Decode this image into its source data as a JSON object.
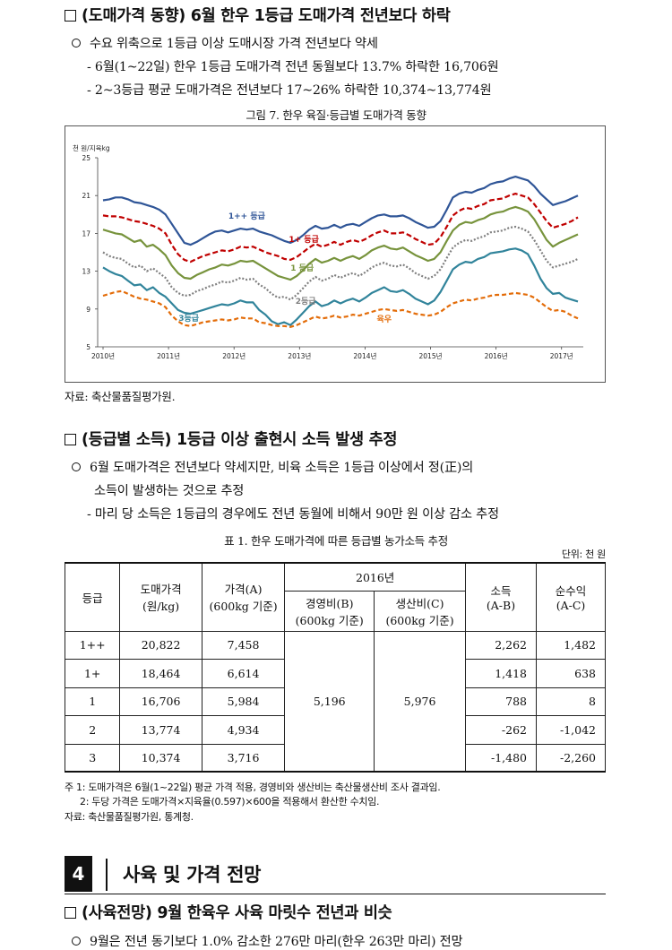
{
  "sections": {
    "s1_title": "(도매가격 동향) 6월 한우 1등급 도매가격 전년보다 하락",
    "s1_bullet": "수요 위축으로 1등급 이상 도매시장 가격 전년보다 약세",
    "s1_dash1": "- 6월(1~22일) 한우 1등급 도매가격 전년 동월보다 13.7% 하락한 16,706원",
    "s1_dash2": "- 2~3등급 평균 도매가격은 전년보다 17~26% 하락한 10,374~13,774원",
    "fig_caption": "그림 7.  한우 육질·등급별 도매가격 동향",
    "fig_source": "자료: 축산물품질평가원.",
    "s2_title": "(등급별 소득) 1등급 이상 출현시 소득 발생 추정",
    "s2_bullet_l1": "6월 도매가격은 전년보다 약세지만, 비육 소득은 1등급 이상에서 정(正)의",
    "s2_bullet_l2": "소득이 발생하는 것으로 추정",
    "s2_dash": "- 마리 당 소득은 1등급의 경우에도 전년 동월에 비해서 90만 원 이상 감소 추정",
    "table_caption": "표 1.  한우 도매가격에 따른 등급별 농가소득 추정",
    "table_unit": "단위: 천 원",
    "note1": "주 1: 도매가격은 6월(1~22일) 평균 가격 적용, 경영비와 생산비는 축산물생산비 조사 결과임.",
    "note2": "2: 두당 가격은 도매가격×지육율(0.597)×600을 적용해서 환산한 수치임.",
    "table_source": "자료: 축산물품질평가원, 통계청.",
    "s4_number": "4",
    "s4_title": "사육 및 가격 전망",
    "s3_title": "(사육전망) 9월 한육우 사육 마릿수 전년과 비슷",
    "s3_bullet": "9월은 전년 동기보다 1.0% 감소한 276만 마리(한우 263만 마리) 전망"
  },
  "table": {
    "h_grade": "등급",
    "h_wholesale_1": "도매가격",
    "h_wholesale_2": "(원/kg)",
    "h_price_1": "가격(A)",
    "h_price_2": "(600kg 기준)",
    "h_year": "2016년",
    "h_cost_1": "경영비(B)",
    "h_cost_2": "(600kg 기준)",
    "h_prod_1": "생산비(C)",
    "h_prod_2": "(600kg 기준)",
    "h_income_1": "소득",
    "h_income_2": "(A-B)",
    "h_net_1": "순수익",
    "h_net_2": "(A-C)",
    "merged_cost": "5,196",
    "merged_prod": "5,976",
    "rows": [
      {
        "grade": "1++",
        "wholesale": "20,822",
        "price": "7,458",
        "income": "2,262",
        "net": "1,482"
      },
      {
        "grade": "1+",
        "wholesale": "18,464",
        "price": "6,614",
        "income": "1,418",
        "net": "638"
      },
      {
        "grade": "1",
        "wholesale": "16,706",
        "price": "5,984",
        "income": "788",
        "net": "8"
      },
      {
        "grade": "2",
        "wholesale": "13,774",
        "price": "4,934",
        "income": "-262",
        "net": "-1,042"
      },
      {
        "grade": "3",
        "wholesale": "10,374",
        "price": "3,716",
        "income": "-1,480",
        "net": "-2,260"
      }
    ]
  },
  "chart_data": {
    "type": "line",
    "ylabel": "천 원/지육kg",
    "ylim": [
      5,
      25
    ],
    "yticks": [
      5,
      9,
      13,
      17,
      21,
      25
    ],
    "xticks": [
      "2010년",
      "2011년",
      "2012년",
      "2013년",
      "2014년",
      "2015년",
      "2016년",
      "2017년"
    ],
    "series": [
      {
        "name": "1++ 등급",
        "color": "#2f5597",
        "dash": "solid",
        "values": [
          20.5,
          20.6,
          20.8,
          20.8,
          20.6,
          20.3,
          20.2,
          20.0,
          19.8,
          19.5,
          19.0,
          18.0,
          17.0,
          16.0,
          15.8,
          16.1,
          16.5,
          16.9,
          17.2,
          17.3,
          17.1,
          17.3,
          17.5,
          17.4,
          17.5,
          17.2,
          17.0,
          16.8,
          16.5,
          16.2,
          16.0,
          16.3,
          16.8,
          17.4,
          17.8,
          17.5,
          17.6,
          17.9,
          17.6,
          17.9,
          18.0,
          17.8,
          18.2,
          18.6,
          18.9,
          19.0,
          18.8,
          18.8,
          18.9,
          18.6,
          18.2,
          17.9,
          17.6,
          17.7,
          18.3,
          19.5,
          20.8,
          21.2,
          21.4,
          21.3,
          21.6,
          21.8,
          22.2,
          22.4,
          22.5,
          22.8,
          23.0,
          22.8,
          22.6,
          22.0,
          21.2,
          20.6,
          20.0,
          20.2,
          20.4,
          20.7,
          21.0
        ]
      },
      {
        "name": "1+ 등급",
        "color": "#c00000",
        "dash": "6,3",
        "values": [
          18.9,
          18.8,
          18.8,
          18.7,
          18.5,
          18.3,
          18.2,
          18.0,
          17.8,
          17.5,
          17.0,
          15.8,
          14.8,
          14.2,
          14.0,
          14.3,
          14.6,
          14.8,
          15.0,
          15.2,
          15.1,
          15.3,
          15.6,
          15.5,
          15.6,
          15.3,
          15.0,
          14.8,
          14.6,
          14.3,
          14.2,
          14.5,
          15.0,
          15.5,
          15.9,
          15.6,
          15.8,
          16.1,
          15.8,
          16.1,
          16.3,
          16.1,
          16.4,
          16.8,
          17.1,
          17.3,
          17.0,
          17.0,
          17.1,
          16.8,
          16.4,
          16.1,
          15.8,
          15.9,
          16.6,
          17.7,
          18.9,
          19.4,
          19.7,
          19.6,
          19.9,
          20.1,
          20.5,
          20.6,
          20.7,
          21.0,
          21.2,
          21.0,
          20.8,
          20.1,
          19.2,
          18.3,
          17.6,
          17.8,
          18.0,
          18.3,
          18.7
        ]
      },
      {
        "name": "1 등급",
        "color": "#77933c",
        "dash": "solid",
        "values": [
          17.4,
          17.2,
          17.0,
          16.9,
          16.5,
          16.1,
          16.3,
          15.6,
          15.8,
          15.3,
          14.7,
          13.6,
          12.8,
          12.3,
          12.2,
          12.6,
          12.9,
          13.2,
          13.4,
          13.7,
          13.6,
          13.8,
          14.1,
          14.0,
          14.1,
          13.7,
          13.3,
          12.9,
          12.5,
          12.3,
          12.1,
          12.5,
          13.1,
          13.8,
          14.3,
          13.9,
          14.1,
          14.4,
          14.1,
          14.4,
          14.6,
          14.3,
          14.7,
          15.2,
          15.5,
          15.7,
          15.4,
          15.3,
          15.5,
          15.1,
          14.7,
          14.4,
          14.1,
          14.3,
          15.0,
          16.2,
          17.3,
          17.9,
          18.2,
          18.1,
          18.4,
          18.6,
          19.0,
          19.2,
          19.3,
          19.6,
          19.8,
          19.6,
          19.3,
          18.5,
          17.4,
          16.3,
          15.6,
          16.0,
          16.3,
          16.6,
          16.9
        ]
      },
      {
        "name": "2등급",
        "color": "#7f7f7f",
        "dash": "2,2",
        "values": [
          15.0,
          14.6,
          14.4,
          14.3,
          13.8,
          13.4,
          13.6,
          13.0,
          13.3,
          12.8,
          12.3,
          11.3,
          10.7,
          10.4,
          10.5,
          10.9,
          11.1,
          11.4,
          11.6,
          11.9,
          11.8,
          12.0,
          12.3,
          12.1,
          12.2,
          11.6,
          11.2,
          10.6,
          10.2,
          10.3,
          10.0,
          10.5,
          11.2,
          11.9,
          12.4,
          12.0,
          12.2,
          12.6,
          12.3,
          12.6,
          12.8,
          12.5,
          12.9,
          13.4,
          13.7,
          13.9,
          13.6,
          13.5,
          13.7,
          13.3,
          12.8,
          12.5,
          12.2,
          12.5,
          13.2,
          14.4,
          15.5,
          16.0,
          16.3,
          16.2,
          16.5,
          16.7,
          17.1,
          17.2,
          17.3,
          17.6,
          17.7,
          17.5,
          17.2,
          16.3,
          15.2,
          14.1,
          13.4,
          13.6,
          13.8,
          14.0,
          14.3
        ]
      },
      {
        "name": "3등급",
        "color": "#31849b",
        "dash": "solid",
        "values": [
          13.4,
          13.0,
          12.7,
          12.5,
          12.0,
          11.5,
          11.6,
          11.0,
          11.3,
          10.7,
          10.3,
          9.6,
          8.9,
          8.6,
          8.5,
          8.7,
          8.9,
          9.1,
          9.3,
          9.5,
          9.4,
          9.6,
          9.9,
          9.7,
          9.7,
          8.9,
          8.4,
          7.7,
          7.4,
          7.6,
          7.3,
          7.9,
          8.6,
          9.3,
          9.8,
          9.3,
          9.5,
          9.9,
          9.6,
          9.9,
          10.1,
          9.8,
          10.2,
          10.7,
          11.0,
          11.3,
          10.9,
          10.8,
          11.0,
          10.6,
          10.1,
          9.8,
          9.5,
          9.9,
          10.8,
          12.0,
          13.2,
          13.7,
          14.0,
          13.9,
          14.3,
          14.5,
          14.9,
          15.0,
          15.1,
          15.3,
          15.4,
          15.2,
          14.8,
          13.6,
          12.2,
          11.2,
          10.6,
          10.7,
          10.2,
          10.0,
          9.8
        ]
      },
      {
        "name": "육우",
        "color": "#e36c09",
        "dash": "5,3",
        "values": [
          10.4,
          10.6,
          10.8,
          10.9,
          10.6,
          10.3,
          10.1,
          10.0,
          9.8,
          9.6,
          9.2,
          8.3,
          7.7,
          7.3,
          7.2,
          7.4,
          7.6,
          7.7,
          7.8,
          7.9,
          7.8,
          7.9,
          8.1,
          8.0,
          8.0,
          7.6,
          7.5,
          7.3,
          7.2,
          7.2,
          7.1,
          7.3,
          7.6,
          7.9,
          8.2,
          8.0,
          8.1,
          8.3,
          8.1,
          8.2,
          8.4,
          8.3,
          8.5,
          8.7,
          8.9,
          9.0,
          8.9,
          8.8,
          8.9,
          8.7,
          8.5,
          8.4,
          8.3,
          8.4,
          8.7,
          9.2,
          9.6,
          9.8,
          10.0,
          9.9,
          10.1,
          10.2,
          10.4,
          10.5,
          10.5,
          10.6,
          10.7,
          10.6,
          10.5,
          10.2,
          9.7,
          9.2,
          8.8,
          8.9,
          8.7,
          8.3,
          8.0
        ]
      }
    ]
  }
}
